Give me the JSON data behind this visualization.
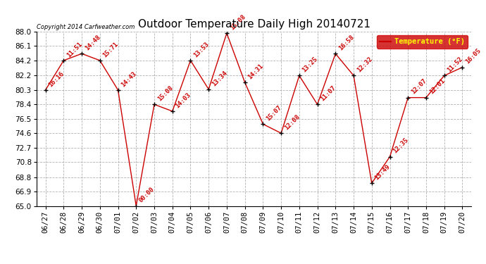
{
  "title": "Outdoor Temperature Daily High 20140721",
  "copyright": "Copyright 2014 Carfweather.com",
  "legend_label": "Temperature (°F)",
  "x_labels": [
    "06/27",
    "06/28",
    "06/29",
    "06/30",
    "07/01",
    "07/02",
    "07/03",
    "07/04",
    "07/05",
    "07/06",
    "07/07",
    "07/08",
    "07/09",
    "07/10",
    "07/11",
    "07/12",
    "07/13",
    "07/14",
    "07/15",
    "07/16",
    "07/17",
    "07/18",
    "07/19",
    "07/20"
  ],
  "y_values": [
    80.3,
    84.2,
    85.1,
    84.2,
    80.3,
    65.0,
    78.4,
    77.5,
    84.2,
    80.4,
    87.8,
    81.3,
    75.8,
    74.6,
    82.2,
    78.4,
    85.1,
    82.2,
    68.0,
    71.5,
    79.3,
    79.3,
    82.2,
    83.3
  ],
  "point_labels": [
    "16:16",
    "11:51",
    "14:48",
    "15:71",
    "14:43",
    "00:00",
    "15:08",
    "14:03",
    "13:53",
    "13:34",
    "15:08",
    "14:31",
    "15:07",
    "12:08",
    "13:25",
    "11:07",
    "16:58",
    "12:32",
    "13:49",
    "12:35",
    "12:07",
    "12:01",
    "11:52",
    "16:05"
  ],
  "ylim": [
    65.0,
    88.0
  ],
  "y_ticks": [
    65.0,
    66.9,
    68.8,
    70.8,
    72.7,
    74.6,
    76.5,
    78.4,
    80.3,
    82.2,
    84.2,
    86.1,
    88.0
  ],
  "line_color": "#cc0000",
  "marker_color": "#000000",
  "bg_color": "#ffffff",
  "grid_color": "#aaaaaa",
  "legend_bg": "#cc0000",
  "legend_text_color": "#ffff00",
  "title_fontsize": 11,
  "label_fontsize": 6.5,
  "tick_fontsize": 7.5,
  "copyright_fontsize": 6
}
